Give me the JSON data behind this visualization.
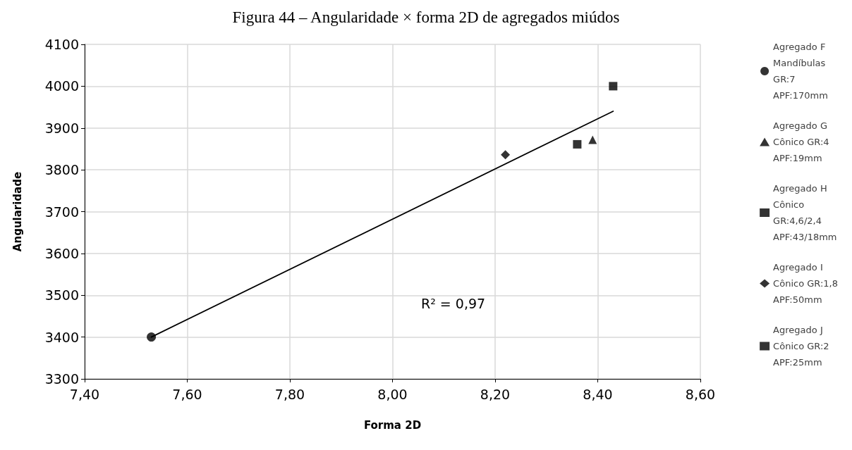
{
  "chart_data": {
    "type": "scatter",
    "title": "Figura 44 – Angularidade × forma 2D de agregados miúdos",
    "xlabel": "Forma 2D",
    "ylabel": "Angularidade",
    "series": [
      {
        "name": "Agregado F\nMandíbulas\nGR:7\nAPF:170mm",
        "color": "#000000",
        "marker": "circle",
        "x": [
          7.53
        ],
        "values": [
          3400
        ]
      },
      {
        "name": "Agregado G\nCônico GR:4\nAPF:19mm",
        "color": "#000000",
        "marker": "triangle",
        "x": [
          8.39
        ],
        "values": [
          3872
        ]
      },
      {
        "name": "Agregado H\nCônico\nGR:4,6/2,4\nAPF:43/18mm",
        "color": "#000000",
        "marker": "square",
        "x": [
          8.36
        ],
        "values": [
          3861
        ]
      },
      {
        "name": "Agregado I\nCônico GR:1,8\nAPF:50mm",
        "color": "#000000",
        "marker": "diamond",
        "x": [
          8.22
        ],
        "values": [
          3836
        ]
      },
      {
        "name": "Agregado J\nCônico GR:2\nAPF:25mm",
        "color": "#000000",
        "marker": "square",
        "x": [
          8.43
        ],
        "values": [
          4000
        ]
      },
      {
        "type": "line",
        "color": "#000000",
        "marker": "none",
        "line_style": "solid",
        "x": [
          7.53,
          8.43
        ],
        "values": [
          3400,
          3940
        ]
      }
    ],
    "xlim": [
      7.4,
      8.6
    ],
    "xticks": [
      {
        "value": 7.4,
        "label": "7,40"
      },
      {
        "value": 7.6,
        "label": "7,60"
      },
      {
        "value": 7.8,
        "label": "7,80"
      },
      {
        "value": 8.0,
        "label": "8,00"
      },
      {
        "value": 8.2,
        "label": "8,20"
      },
      {
        "value": 8.4,
        "label": "8,40"
      },
      {
        "value": 8.6,
        "label": "8,60"
      }
    ],
    "ylim": [
      3300,
      4100
    ],
    "yticks": [
      3300,
      3400,
      3500,
      3600,
      3700,
      3800,
      3900,
      4000,
      4100
    ],
    "annotations": [
      "R² = 0,97"
    ],
    "grid": true,
    "legend": "right"
  }
}
